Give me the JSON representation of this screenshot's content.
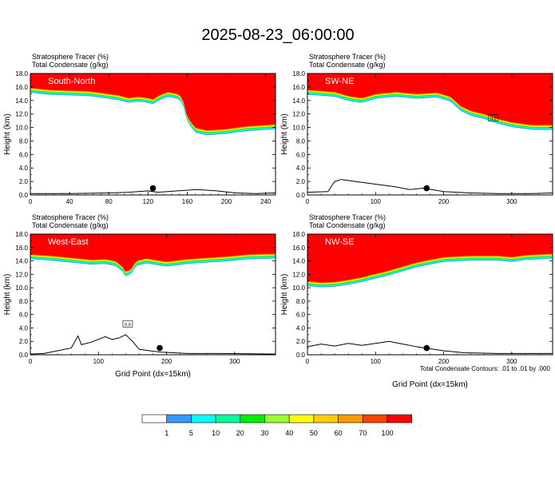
{
  "title": "2025-08-23_06:00:00",
  "footer_note": "Total Condensate Contours: .01 to .01 by .000",
  "colors": {
    "red": "#ff0000",
    "orange_red": "#ff4000",
    "orange": "#ff9900",
    "gold": "#ffcc00",
    "yellow": "#ffff00",
    "yellow_green": "#99ff33",
    "green": "#00ee00",
    "spring_green": "#00ff99",
    "cyan": "#00ffff",
    "blue": "#3399ff"
  },
  "colorbar": {
    "colors": [
      "#ffffff",
      "#3399ff",
      "#00ffff",
      "#00ff99",
      "#00ee00",
      "#99ff33",
      "#ffff00",
      "#ffcc00",
      "#ff9900",
      "#ff4000",
      "#ff0000"
    ],
    "labels": [
      "1",
      "5",
      "10",
      "20",
      "30",
      "40",
      "50",
      "60",
      "70",
      "100"
    ]
  },
  "chart_data": [
    {
      "type": "heatmap",
      "panel_label": "South-North",
      "title_lines": [
        "Stratosphere Tracer   (%)",
        "Total Condensate   (g/kg)"
      ],
      "xlabel": "",
      "ylabel": "Height (km)",
      "xlim": [
        0,
        250
      ],
      "ylim": [
        0,
        18
      ],
      "xticks": [
        0,
        40,
        80,
        120,
        160,
        200,
        240
      ],
      "yticks": [
        0,
        2,
        4,
        6,
        8,
        10,
        12,
        14,
        16,
        18
      ],
      "ytick_labels": [
        "0.0",
        "2.0",
        "4.0",
        "6.0",
        "8.0",
        "10.0",
        "12.0",
        "14.0",
        "16.0",
        "18.0"
      ],
      "tracer_base_km": [
        [
          0,
          15.9
        ],
        [
          20,
          15.6
        ],
        [
          40,
          15.5
        ],
        [
          60,
          15.4
        ],
        [
          80,
          15.0
        ],
        [
          90,
          14.8
        ],
        [
          100,
          14.4
        ],
        [
          110,
          14.6
        ],
        [
          120,
          14.4
        ],
        [
          125,
          14.2
        ],
        [
          130,
          14.7
        ],
        [
          140,
          15.3
        ],
        [
          150,
          15.0
        ],
        [
          155,
          14.5
        ],
        [
          160,
          11.6
        ],
        [
          168,
          10.0
        ],
        [
          180,
          9.6
        ],
        [
          200,
          9.8
        ],
        [
          220,
          10.2
        ],
        [
          240,
          10.4
        ],
        [
          250,
          10.5
        ]
      ],
      "terrain_km": [
        [
          0,
          0.2
        ],
        [
          40,
          0.2
        ],
        [
          80,
          0.3
        ],
        [
          100,
          0.4
        ],
        [
          120,
          0.6
        ],
        [
          130,
          0.4
        ],
        [
          150,
          0.6
        ],
        [
          170,
          0.8
        ],
        [
          190,
          0.6
        ],
        [
          210,
          0.3
        ],
        [
          230,
          0.2
        ],
        [
          250,
          0.3
        ]
      ],
      "marker": [
        125,
        1.0
      ]
    },
    {
      "type": "heatmap",
      "panel_label": "SW-NE",
      "title_lines": [
        "Stratosphere Tracer   (%)",
        "Total Condensate   (g/kg)"
      ],
      "xlabel": "",
      "ylabel": "Height (km)",
      "xlim": [
        0,
        360
      ],
      "ylim": [
        0,
        18
      ],
      "xticks": [
        0,
        100,
        200,
        300
      ],
      "yticks": [
        0,
        2,
        4,
        6,
        8,
        10,
        12,
        14,
        16,
        18
      ],
      "ytick_labels": [
        "0.0",
        "2.0",
        "4.0",
        "6.0",
        "8.0",
        "10.0",
        "12.0",
        "14.0",
        "16.0",
        "18.0"
      ],
      "tracer_base_km": [
        [
          0,
          15.6
        ],
        [
          40,
          15.3
        ],
        [
          60,
          14.7
        ],
        [
          80,
          14.4
        ],
        [
          100,
          15.0
        ],
        [
          130,
          15.3
        ],
        [
          160,
          15.0
        ],
        [
          190,
          15.2
        ],
        [
          210,
          14.6
        ],
        [
          225,
          13.2
        ],
        [
          240,
          12.5
        ],
        [
          260,
          12.0
        ],
        [
          280,
          11.3
        ],
        [
          300,
          10.8
        ],
        [
          330,
          10.4
        ],
        [
          360,
          10.4
        ]
      ],
      "terrain_km": [
        [
          0,
          0.4
        ],
        [
          30,
          0.5
        ],
        [
          40,
          2.0
        ],
        [
          50,
          2.3
        ],
        [
          70,
          2.0
        ],
        [
          100,
          1.6
        ],
        [
          130,
          1.2
        ],
        [
          150,
          0.8
        ],
        [
          170,
          1.0
        ],
        [
          200,
          0.5
        ],
        [
          240,
          0.3
        ],
        [
          280,
          0.2
        ],
        [
          330,
          0.2
        ],
        [
          360,
          0.3
        ]
      ],
      "marker": [
        175,
        1.0
      ],
      "annotation": "0.0",
      "annotation_pos": [
        273,
        11.3
      ]
    },
    {
      "type": "heatmap",
      "panel_label": "West-East",
      "title_lines": [
        "Stratosphere Tracer   (%)",
        "Total Condensate   (g/kg)"
      ],
      "xlabel": "Grid Point (dx=15km)",
      "ylabel": "Height (km)",
      "xlim": [
        0,
        360
      ],
      "ylim": [
        0,
        18
      ],
      "xticks": [
        0,
        100,
        200,
        300
      ],
      "yticks": [
        0,
        2,
        4,
        6,
        8,
        10,
        12,
        14,
        16,
        18
      ],
      "ytick_labels": [
        "0.0",
        "2.0",
        "4.0",
        "6.0",
        "8.0",
        "10.0",
        "12.0",
        "14.0",
        "16.0",
        "18.0"
      ],
      "tracer_base_km": [
        [
          0,
          15.0
        ],
        [
          30,
          14.8
        ],
        [
          60,
          14.5
        ],
        [
          90,
          14.2
        ],
        [
          110,
          14.3
        ],
        [
          125,
          14.0
        ],
        [
          135,
          13.2
        ],
        [
          140,
          12.4
        ],
        [
          148,
          12.8
        ],
        [
          155,
          14.0
        ],
        [
          170,
          14.4
        ],
        [
          200,
          13.9
        ],
        [
          230,
          14.3
        ],
        [
          260,
          14.5
        ],
        [
          290,
          14.7
        ],
        [
          320,
          15.0
        ],
        [
          360,
          15.1
        ]
      ],
      "terrain_km": [
        [
          0,
          0.1
        ],
        [
          20,
          0.2
        ],
        [
          40,
          0.6
        ],
        [
          60,
          1.0
        ],
        [
          70,
          2.8
        ],
        [
          75,
          1.5
        ],
        [
          90,
          1.9
        ],
        [
          100,
          2.3
        ],
        [
          110,
          2.7
        ],
        [
          120,
          2.3
        ],
        [
          130,
          2.5
        ],
        [
          140,
          3.0
        ],
        [
          150,
          2.0
        ],
        [
          160,
          0.8
        ],
        [
          190,
          0.4
        ],
        [
          230,
          0.2
        ],
        [
          280,
          0.2
        ],
        [
          360,
          0.1
        ]
      ],
      "marker": [
        190,
        1.0
      ],
      "annotation": "0.0",
      "annotation_pos": [
        143,
        4.5
      ]
    },
    {
      "type": "heatmap",
      "panel_label": "NW-SE",
      "title_lines": [
        "Stratosphere Tracer   (%)",
        "Total Condensate   (g/kg)"
      ],
      "xlabel": "Grid Point (dx=15km)",
      "ylabel": "Height (km)",
      "xlim": [
        0,
        360
      ],
      "ylim": [
        0,
        18
      ],
      "xticks": [
        0,
        100,
        200,
        300
      ],
      "yticks": [
        0,
        2,
        4,
        6,
        8,
        10,
        12,
        14,
        16,
        18
      ],
      "ytick_labels": [
        "0.0",
        "2.0",
        "4.0",
        "6.0",
        "8.0",
        "10.0",
        "12.0",
        "14.0",
        "16.0",
        "18.0"
      ],
      "tracer_base_km": [
        [
          0,
          11.0
        ],
        [
          20,
          10.8
        ],
        [
          40,
          10.9
        ],
        [
          60,
          11.2
        ],
        [
          80,
          11.6
        ],
        [
          100,
          12.1
        ],
        [
          120,
          12.6
        ],
        [
          140,
          13.2
        ],
        [
          160,
          13.8
        ],
        [
          180,
          14.2
        ],
        [
          200,
          14.6
        ],
        [
          240,
          14.8
        ],
        [
          280,
          14.8
        ],
        [
          300,
          14.6
        ],
        [
          320,
          14.9
        ],
        [
          360,
          15.1
        ]
      ],
      "terrain_km": [
        [
          0,
          1.2
        ],
        [
          20,
          1.6
        ],
        [
          40,
          1.3
        ],
        [
          60,
          1.7
        ],
        [
          80,
          1.4
        ],
        [
          100,
          1.7
        ],
        [
          120,
          2.0
        ],
        [
          140,
          1.6
        ],
        [
          160,
          1.2
        ],
        [
          180,
          0.9
        ],
        [
          200,
          0.6
        ],
        [
          230,
          0.3
        ],
        [
          280,
          0.2
        ],
        [
          360,
          0.2
        ]
      ],
      "marker": [
        175,
        1.0
      ]
    }
  ]
}
